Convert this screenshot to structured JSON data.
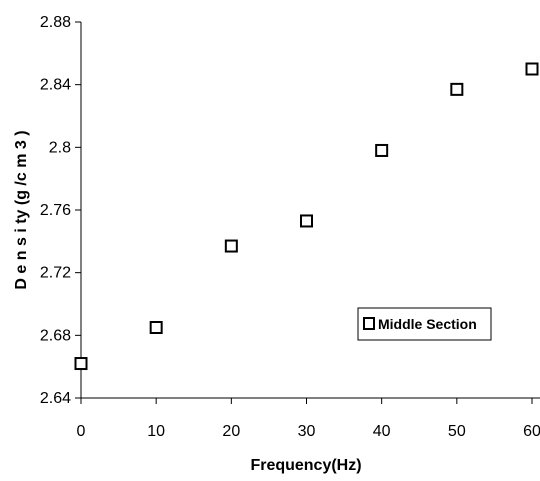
{
  "chart_data": {
    "type": "scatter",
    "xlabel": "Frequency(Hz)",
    "ylabel": "D e n s i ty (g /c m 3 )",
    "xlim": [
      0,
      60
    ],
    "ylim": [
      2.64,
      2.88
    ],
    "x_ticks": [
      "0",
      "10",
      "20",
      "30",
      "40",
      "50",
      "60"
    ],
    "y_ticks": [
      "2.64",
      "2.68",
      "2.72",
      "2.76",
      "2.8",
      "2.84",
      "2.88"
    ],
    "grid": false,
    "legend_position": "bottom-right",
    "series": [
      {
        "name": "Middle Section",
        "marker": "open-square",
        "x": [
          0,
          10,
          20,
          30,
          40,
          50,
          60
        ],
        "y": [
          2.662,
          2.685,
          2.737,
          2.753,
          2.798,
          2.837,
          2.85
        ]
      }
    ]
  }
}
